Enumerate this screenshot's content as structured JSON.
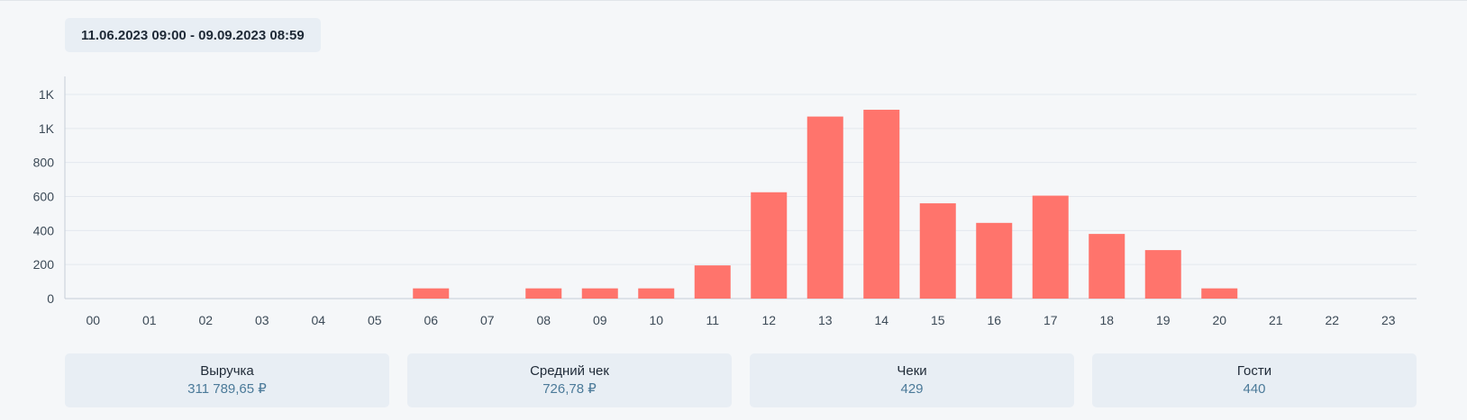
{
  "period": {
    "label": "11.06.2023 09:00 - 09.09.2023 08:59"
  },
  "chart_data": {
    "type": "bar",
    "categories": [
      "00",
      "01",
      "02",
      "03",
      "04",
      "05",
      "06",
      "07",
      "08",
      "09",
      "10",
      "11",
      "12",
      "13",
      "14",
      "15",
      "16",
      "17",
      "18",
      "19",
      "20",
      "21",
      "22",
      "23"
    ],
    "values": [
      0,
      0,
      0,
      0,
      0,
      0,
      60,
      0,
      60,
      60,
      60,
      195,
      625,
      1070,
      1110,
      560,
      445,
      605,
      380,
      285,
      60,
      0,
      0,
      0
    ],
    "yticks": [
      0,
      200,
      400,
      600,
      800,
      1000,
      1200
    ],
    "ytick_labels": [
      "0",
      "200",
      "400",
      "600",
      "800",
      "1K",
      "1K"
    ],
    "ylim": [
      0,
      1200
    ],
    "grid": true,
    "colors": {
      "bar": "#ff746c",
      "grid": "#e3e8ee",
      "axis": "#c5ced8"
    }
  },
  "summary": [
    {
      "label": "Выручка",
      "value": "311 789,65 ₽"
    },
    {
      "label": "Средний чек",
      "value": "726,78 ₽"
    },
    {
      "label": "Чеки",
      "value": "429"
    },
    {
      "label": "Гости",
      "value": "440"
    }
  ]
}
